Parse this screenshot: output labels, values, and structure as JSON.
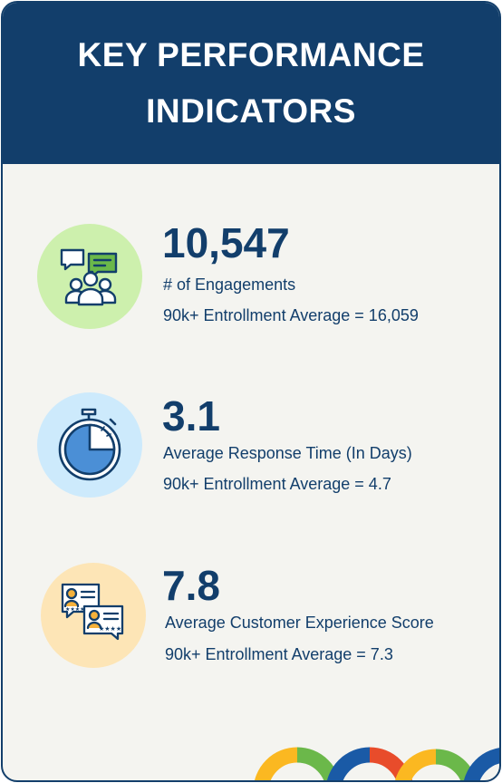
{
  "header": {
    "title_line1": "KEY PERFORMANCE",
    "title_line2": "INDICATORS"
  },
  "kpis": [
    {
      "value": "10,547",
      "label": "# of Engagements",
      "average": "90k+ Entrollment Average = 16,059",
      "icon": "engagement-people-icon",
      "circle_color": "#cdf0ad"
    },
    {
      "value": "3.1",
      "label": "Average Response Time (In Days)",
      "average": "90k+ Entrollment Average = 4.7",
      "icon": "stopwatch-icon",
      "circle_color": "#cdeafc"
    },
    {
      "value": "7.8",
      "label": "Average Customer Experience Score",
      "average": "90k+ Entrollment Average = 7.3",
      "icon": "customer-rating-icon",
      "circle_color": "#fde5b6"
    }
  ],
  "colors": {
    "navy": "#123e6b",
    "background": "#f4f4f0",
    "arc_yellow": "#fbb821",
    "arc_green": "#6bb84a",
    "arc_blue": "#1a5aa6",
    "arc_red": "#e84c2b",
    "arc_orange": "#f6952a"
  }
}
